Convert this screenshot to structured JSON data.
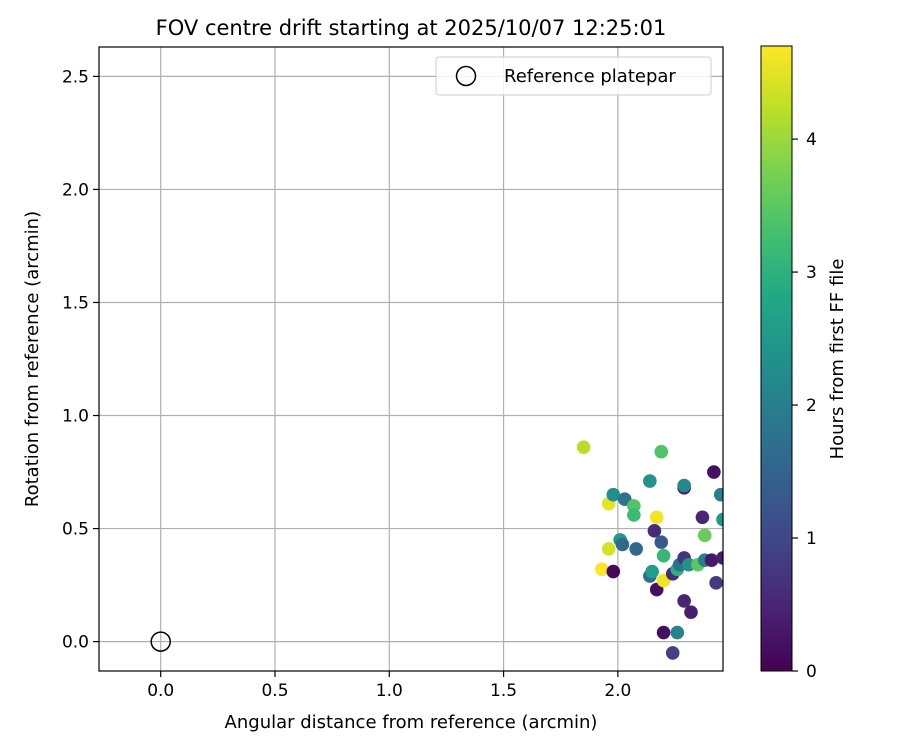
{
  "chart_data": {
    "type": "scatter",
    "title": "FOV centre drift starting at 2025/10/07 12:25:01",
    "xlabel": "Angular distance from reference (arcmin)",
    "ylabel": "Rotation from reference (arcmin)",
    "xlim": [
      -0.27,
      2.46
    ],
    "ylim": [
      -0.13,
      2.63
    ],
    "xticks": [
      0.0,
      0.5,
      1.0,
      1.5,
      2.0
    ],
    "xtick_labels": [
      "0.0",
      "0.5",
      "1.0",
      "1.5",
      "2.0"
    ],
    "yticks": [
      0.0,
      0.5,
      1.0,
      1.5,
      2.0,
      2.5
    ],
    "ytick_labels": [
      "0.0",
      "0.5",
      "1.0",
      "1.5",
      "2.0",
      "2.5"
    ],
    "grid": true,
    "legend": {
      "position": "top-right",
      "entries": [
        "Reference platepar"
      ]
    },
    "reference": {
      "x": 0.0,
      "y": 0.0,
      "label": "Reference platepar",
      "marker": "hollow-circle"
    },
    "colorbar": {
      "label": "Hours from first FF file",
      "colormap": "viridis",
      "range": [
        0,
        4.7
      ],
      "ticks": [
        0,
        1,
        2,
        3,
        4
      ],
      "tick_labels": [
        "0",
        "1",
        "2",
        "3",
        "4"
      ]
    },
    "points": [
      {
        "x": 1.85,
        "y": 0.86,
        "c": 4.2
      },
      {
        "x": 1.96,
        "y": 0.61,
        "c": 4.5
      },
      {
        "x": 1.96,
        "y": 0.41,
        "c": 4.4
      },
      {
        "x": 1.93,
        "y": 0.32,
        "c": 4.7
      },
      {
        "x": 1.98,
        "y": 0.31,
        "c": 0.1
      },
      {
        "x": 1.98,
        "y": 0.65,
        "c": 2.3
      },
      {
        "x": 2.01,
        "y": 0.45,
        "c": 2.5
      },
      {
        "x": 2.02,
        "y": 0.43,
        "c": 1.6
      },
      {
        "x": 2.03,
        "y": 0.63,
        "c": 1.8
      },
      {
        "x": 2.07,
        "y": 0.6,
        "c": 3.4
      },
      {
        "x": 2.07,
        "y": 0.56,
        "c": 3.2
      },
      {
        "x": 2.08,
        "y": 0.41,
        "c": 1.6
      },
      {
        "x": 2.14,
        "y": 0.71,
        "c": 2.4
      },
      {
        "x": 2.14,
        "y": 0.29,
        "c": 1.7
      },
      {
        "x": 2.15,
        "y": 0.31,
        "c": 2.6
      },
      {
        "x": 2.16,
        "y": 0.49,
        "c": 0.6
      },
      {
        "x": 2.17,
        "y": 0.23,
        "c": 0.2
      },
      {
        "x": 2.17,
        "y": 0.55,
        "c": 4.6
      },
      {
        "x": 2.19,
        "y": 0.44,
        "c": 1.3
      },
      {
        "x": 2.19,
        "y": 0.84,
        "c": 3.4
      },
      {
        "x": 2.2,
        "y": 0.38,
        "c": 3.1
      },
      {
        "x": 2.2,
        "y": 0.27,
        "c": 4.6
      },
      {
        "x": 2.2,
        "y": 0.04,
        "c": 0.2
      },
      {
        "x": 2.24,
        "y": 0.3,
        "c": 0.6
      },
      {
        "x": 2.24,
        "y": -0.05,
        "c": 0.9
      },
      {
        "x": 2.26,
        "y": 0.04,
        "c": 2.1
      },
      {
        "x": 2.26,
        "y": 0.32,
        "c": 3.0
      },
      {
        "x": 2.27,
        "y": 0.34,
        "c": 1.8
      },
      {
        "x": 2.29,
        "y": 0.68,
        "c": 0.4
      },
      {
        "x": 2.29,
        "y": 0.69,
        "c": 2.2
      },
      {
        "x": 2.29,
        "y": 0.37,
        "c": 0.7
      },
      {
        "x": 2.29,
        "y": 0.18,
        "c": 0.5
      },
      {
        "x": 2.31,
        "y": 0.34,
        "c": 2.4
      },
      {
        "x": 2.32,
        "y": 0.13,
        "c": 0.4
      },
      {
        "x": 2.35,
        "y": 0.34,
        "c": 3.5
      },
      {
        "x": 2.37,
        "y": 0.55,
        "c": 0.5
      },
      {
        "x": 2.38,
        "y": 0.47,
        "c": 3.6
      },
      {
        "x": 2.38,
        "y": 0.36,
        "c": 2.0
      },
      {
        "x": 2.41,
        "y": 0.36,
        "c": 0.3
      },
      {
        "x": 2.42,
        "y": 0.75,
        "c": 0.2
      },
      {
        "x": 2.43,
        "y": 0.26,
        "c": 0.8
      },
      {
        "x": 2.45,
        "y": 0.65,
        "c": 2.0
      },
      {
        "x": 2.46,
        "y": 0.54,
        "c": 2.5
      },
      {
        "x": 2.46,
        "y": 0.37,
        "c": 0.4
      }
    ]
  }
}
